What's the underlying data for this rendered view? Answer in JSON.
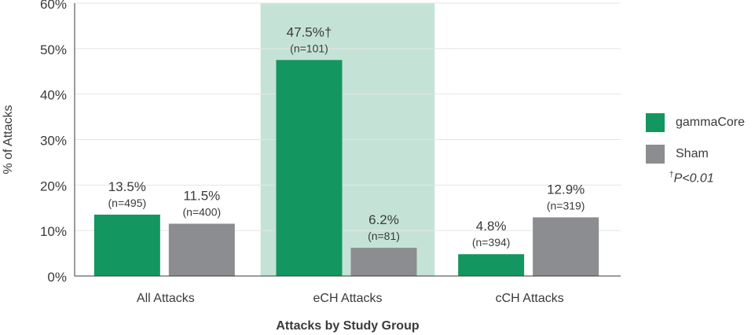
{
  "chart_data": {
    "type": "bar",
    "categories": [
      "All Attacks",
      "eCH Attacks",
      "cCH Attacks"
    ],
    "series": [
      {
        "name": "gammaCore",
        "values": [
          13.5,
          47.5,
          4.8
        ],
        "value_labels": [
          "13.5%",
          "47.5%†",
          "4.8%"
        ],
        "n_labels": [
          "(n=495)",
          "(n=101)",
          "(n=394)"
        ]
      },
      {
        "name": "Sham",
        "values": [
          11.5,
          6.2,
          12.9
        ],
        "value_labels": [
          "11.5%",
          "6.2%",
          "12.9%"
        ],
        "n_labels": [
          "(n=400)",
          "(n=81)",
          "(n=319)"
        ]
      }
    ],
    "ylim": [
      0,
      60
    ],
    "yticks": [
      "0%",
      "10%",
      "20%",
      "30%",
      "40%",
      "50%",
      "60%"
    ],
    "ylabel": "% of Attacks",
    "xlabel": "Attacks by Study Group",
    "highlight_category": "eCH Attacks",
    "grid": true,
    "legend_position": "right",
    "note": {
      "dagger": "†",
      "text": "P<0.01"
    }
  },
  "colors": {
    "gammaCore": "#13965f",
    "Sham": "#8c8d90",
    "highlight": "#c4e3d6",
    "grid": "#e4e4e4",
    "axis": "#3a3a3a"
  }
}
